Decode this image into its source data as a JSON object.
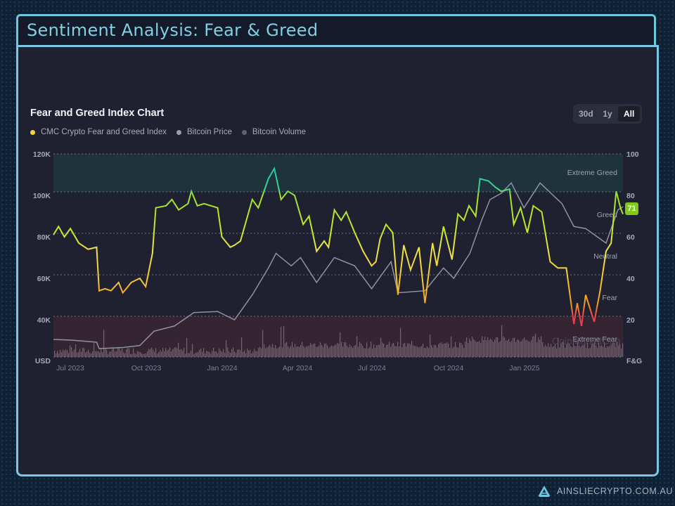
{
  "header": {
    "title": "Sentiment Analysis: Fear & Greed"
  },
  "chart_card": {
    "title": "Fear and Greed Index Chart",
    "legend": [
      {
        "label": "CMC Crypto Fear and Greed Index",
        "color": "#f2d73a"
      },
      {
        "label": "Bitcoin Price",
        "color": "#9a9cab"
      },
      {
        "label": "Bitcoin Volume",
        "color": "#5f6070"
      }
    ],
    "range_buttons": [
      {
        "label": "30d",
        "active": false
      },
      {
        "label": "1y",
        "active": false
      },
      {
        "label": "All",
        "active": true
      }
    ],
    "current_value_badge": "71",
    "watermark": "CoinMarketCap"
  },
  "footer": {
    "brand": "AINSLIECRYPTO.COM.AU"
  },
  "chart_data": {
    "type": "line",
    "title": "Fear and Greed Index Chart",
    "x": [
      "Jul 2023",
      "Oct 2023",
      "Jan 2024",
      "Apr 2024",
      "Jul 2024",
      "Oct 2024",
      "Jan 2025"
    ],
    "xlabel": "",
    "ylabel_left": "USD",
    "ylabel_right": "F&G",
    "left_axis_ticks": [
      "120K",
      "100K",
      "80K",
      "60K",
      "40K"
    ],
    "right_axis_ticks": [
      "100",
      "80",
      "60",
      "40",
      "20"
    ],
    "ylim_left": [
      20000,
      120000
    ],
    "ylim_right": [
      0,
      100
    ],
    "zones": [
      {
        "label": "Extreme Greed",
        "range": [
          80,
          100
        ]
      },
      {
        "label": "Greed",
        "range": [
          60,
          80
        ]
      },
      {
        "label": "Neutral",
        "range": [
          40,
          60
        ]
      },
      {
        "label": "Fear",
        "range": [
          20,
          40
        ]
      },
      {
        "label": "Extreme Fear",
        "range": [
          0,
          20
        ]
      }
    ],
    "grid": true,
    "legend_position": "top-left",
    "series": [
      {
        "name": "CMC Crypto Fear and Greed Index",
        "axis": "right",
        "points": [
          [
            "2023-06-25",
            61
          ],
          [
            "2023-07-01",
            65
          ],
          [
            "2023-07-08",
            60
          ],
          [
            "2023-07-15",
            64
          ],
          [
            "2023-07-25",
            57
          ],
          [
            "2023-08-05",
            54
          ],
          [
            "2023-08-15",
            55
          ],
          [
            "2023-08-18",
            34
          ],
          [
            "2023-08-25",
            35
          ],
          [
            "2023-09-01",
            34
          ],
          [
            "2023-09-10",
            38
          ],
          [
            "2023-09-15",
            33
          ],
          [
            "2023-09-25",
            38
          ],
          [
            "2023-10-05",
            40
          ],
          [
            "2023-10-12",
            36
          ],
          [
            "2023-10-20",
            52
          ],
          [
            "2023-10-24",
            74
          ],
          [
            "2023-11-05",
            75
          ],
          [
            "2023-11-12",
            78
          ],
          [
            "2023-11-20",
            73
          ],
          [
            "2023-12-01",
            76
          ],
          [
            "2023-12-05",
            82
          ],
          [
            "2023-12-12",
            75
          ],
          [
            "2023-12-20",
            76
          ],
          [
            "2023-12-28",
            75
          ],
          [
            "2024-01-05",
            74
          ],
          [
            "2024-01-10",
            60
          ],
          [
            "2024-01-20",
            55
          ],
          [
            "2024-01-25",
            56
          ],
          [
            "2024-02-01",
            58
          ],
          [
            "2024-02-08",
            68
          ],
          [
            "2024-02-15",
            78
          ],
          [
            "2024-02-22",
            74
          ],
          [
            "2024-03-05",
            88
          ],
          [
            "2024-03-12",
            93
          ],
          [
            "2024-03-20",
            78
          ],
          [
            "2024-03-28",
            82
          ],
          [
            "2024-04-05",
            80
          ],
          [
            "2024-04-15",
            66
          ],
          [
            "2024-04-22",
            70
          ],
          [
            "2024-05-01",
            53
          ],
          [
            "2024-05-10",
            58
          ],
          [
            "2024-05-15",
            55
          ],
          [
            "2024-05-22",
            73
          ],
          [
            "2024-05-30",
            68
          ],
          [
            "2024-06-05",
            72
          ],
          [
            "2024-06-15",
            62
          ],
          [
            "2024-06-25",
            53
          ],
          [
            "2024-07-05",
            46
          ],
          [
            "2024-07-10",
            48
          ],
          [
            "2024-07-15",
            59
          ],
          [
            "2024-07-22",
            66
          ],
          [
            "2024-07-30",
            62
          ],
          [
            "2024-08-05",
            32
          ],
          [
            "2024-08-12",
            56
          ],
          [
            "2024-08-20",
            44
          ],
          [
            "2024-08-30",
            55
          ],
          [
            "2024-09-06",
            28
          ],
          [
            "2024-09-15",
            57
          ],
          [
            "2024-09-20",
            46
          ],
          [
            "2024-09-28",
            65
          ],
          [
            "2024-10-08",
            49
          ],
          [
            "2024-10-15",
            71
          ],
          [
            "2024-10-22",
            68
          ],
          [
            "2024-10-28",
            75
          ],
          [
            "2024-11-05",
            70
          ],
          [
            "2024-11-10",
            88
          ],
          [
            "2024-11-20",
            87
          ],
          [
            "2024-11-28",
            84
          ],
          [
            "2024-12-05",
            82
          ],
          [
            "2024-12-15",
            83
          ],
          [
            "2024-12-20",
            66
          ],
          [
            "2024-12-28",
            74
          ],
          [
            "2025-01-05",
            62
          ],
          [
            "2025-01-12",
            75
          ],
          [
            "2025-01-22",
            72
          ],
          [
            "2025-02-01",
            48
          ],
          [
            "2025-02-10",
            45
          ],
          [
            "2025-02-20",
            45
          ],
          [
            "2025-03-01",
            18
          ],
          [
            "2025-03-05",
            28
          ],
          [
            "2025-03-10",
            17
          ],
          [
            "2025-03-15",
            32
          ],
          [
            "2025-03-25",
            19
          ],
          [
            "2025-04-01",
            34
          ],
          [
            "2025-04-08",
            53
          ],
          [
            "2025-04-14",
            57
          ],
          [
            "2025-04-20",
            82
          ],
          [
            "2025-04-25",
            74
          ],
          [
            "2025-04-28",
            71
          ]
        ]
      },
      {
        "name": "Bitcoin Price",
        "axis": "left",
        "points": [
          [
            "2023-06-25",
            30500
          ],
          [
            "2023-07-15",
            30200
          ],
          [
            "2023-08-15",
            29200
          ],
          [
            "2023-08-18",
            26100
          ],
          [
            "2023-09-15",
            26600
          ],
          [
            "2023-10-05",
            27600
          ],
          [
            "2023-10-22",
            34500
          ],
          [
            "2023-11-15",
            37000
          ],
          [
            "2023-12-08",
            43500
          ],
          [
            "2024-01-05",
            44000
          ],
          [
            "2024-01-25",
            40000
          ],
          [
            "2024-02-15",
            52000
          ],
          [
            "2024-03-05",
            65000
          ],
          [
            "2024-03-14",
            72000
          ],
          [
            "2024-04-01",
            66000
          ],
          [
            "2024-04-12",
            70000
          ],
          [
            "2024-05-01",
            58000
          ],
          [
            "2024-05-22",
            70000
          ],
          [
            "2024-06-15",
            66000
          ],
          [
            "2024-07-05",
            55000
          ],
          [
            "2024-07-28",
            68000
          ],
          [
            "2024-08-05",
            53000
          ],
          [
            "2024-09-06",
            54000
          ],
          [
            "2024-09-28",
            65000
          ],
          [
            "2024-10-10",
            60000
          ],
          [
            "2024-10-29",
            72000
          ],
          [
            "2024-11-12",
            88000
          ],
          [
            "2024-11-22",
            98000
          ],
          [
            "2024-12-05",
            101000
          ],
          [
            "2024-12-17",
            106000
          ],
          [
            "2025-01-01",
            94000
          ],
          [
            "2025-01-20",
            106000
          ],
          [
            "2025-02-15",
            96000
          ],
          [
            "2025-03-01",
            85000
          ],
          [
            "2025-03-15",
            84000
          ],
          [
            "2025-04-08",
            77000
          ],
          [
            "2025-04-22",
            93000
          ],
          [
            "2025-04-28",
            94500
          ]
        ]
      },
      {
        "name": "Bitcoin Volume",
        "axis": "left",
        "note": "bar-style volume trace along the bottom band (relative heights)"
      }
    ]
  }
}
